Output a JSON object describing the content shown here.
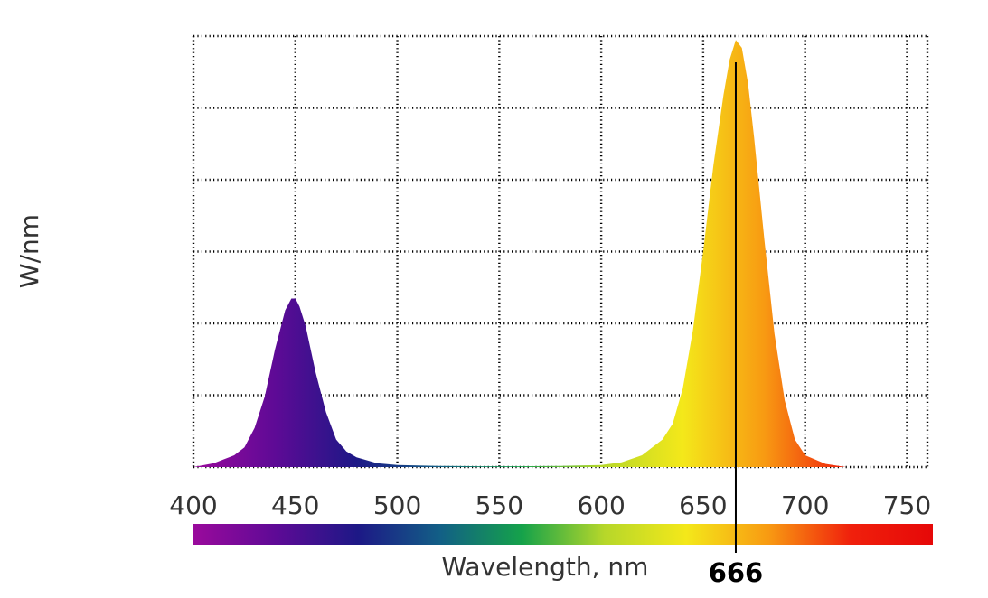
{
  "chart_data": {
    "type": "area",
    "title": "",
    "xlabel": "Wavelength, nm",
    "ylabel": "W/nm",
    "xlim": [
      400,
      760
    ],
    "ylim": [
      0,
      1.1
    ],
    "x_ticks": [
      400,
      450,
      500,
      550,
      600,
      650,
      700,
      750
    ],
    "grid": true,
    "peak_marker": {
      "x": 666,
      "label": "666"
    },
    "series": [
      {
        "x": [
          400,
          410,
          420,
          425,
          430,
          435,
          440,
          445,
          448,
          450,
          452,
          455,
          460,
          465,
          470,
          475,
          480,
          490,
          500,
          510,
          520,
          540,
          560,
          580,
          600,
          610,
          620,
          630,
          635,
          640,
          645,
          650,
          655,
          660,
          663,
          666,
          669,
          672,
          675,
          680,
          685,
          690,
          695,
          700,
          710,
          720
        ],
        "y": [
          0.0,
          0.01,
          0.03,
          0.05,
          0.1,
          0.18,
          0.3,
          0.4,
          0.43,
          0.43,
          0.41,
          0.36,
          0.24,
          0.14,
          0.07,
          0.04,
          0.025,
          0.01,
          0.005,
          0.004,
          0.003,
          0.002,
          0.002,
          0.003,
          0.005,
          0.012,
          0.03,
          0.07,
          0.11,
          0.2,
          0.35,
          0.55,
          0.77,
          0.95,
          1.04,
          1.09,
          1.07,
          0.98,
          0.84,
          0.58,
          0.34,
          0.17,
          0.07,
          0.03,
          0.008,
          0.0
        ]
      }
    ],
    "spectrum_colors": [
      "#9a0a9c",
      "#5e0a96",
      "#1d1886",
      "#125f86",
      "#15a24a",
      "#b6d72a",
      "#f4e81a",
      "#f89a12",
      "#f0200c",
      "#e60808"
    ]
  }
}
